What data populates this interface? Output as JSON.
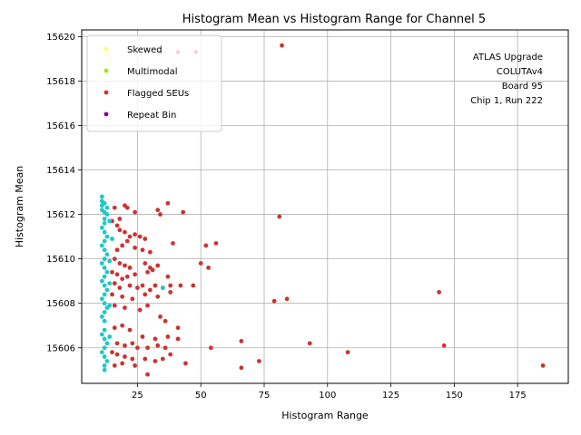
{
  "chart_data": {
    "type": "scatter",
    "title": "Histogram Mean vs Histogram Range for Channel 5",
    "xlabel": "Histogram Range",
    "ylabel": "Histogram Mean",
    "xlim": [
      3,
      195
    ],
    "ylim": [
      15604.4,
      15620.3
    ],
    "xticks": [
      25,
      50,
      75,
      100,
      125,
      150,
      175
    ],
    "yticks": [
      15606,
      15608,
      15610,
      15612,
      15614,
      15616,
      15618,
      15620
    ],
    "xtick_labels": [
      "25",
      "50",
      "75",
      "100",
      "125",
      "150",
      "175"
    ],
    "ytick_labels": [
      "15606",
      "15608",
      "15610",
      "15612",
      "15614",
      "15616",
      "15618",
      "15620"
    ],
    "grid": true,
    "legend_position": "top-left",
    "annotation_lines": [
      "ATLAS Upgrade",
      "COLUTAv4",
      "Board 95",
      "Chip 1, Run 222"
    ],
    "series": [
      {
        "name": "Skewed",
        "color": "#ffff66",
        "points": [
          [
            13,
            15619.2
          ],
          [
            14,
            15619.1
          ]
        ]
      },
      {
        "name": "Multimodal",
        "color": "#99ee00",
        "points": []
      },
      {
        "name": "Flagged SEUs",
        "color": "#cc3333",
        "points": [
          [
            82,
            15619.6
          ],
          [
            34,
            15619.3
          ],
          [
            41,
            15619.3
          ],
          [
            48,
            15619.3
          ],
          [
            37,
            15612.5
          ],
          [
            20,
            15612.4
          ],
          [
            21,
            15612.3
          ],
          [
            33,
            15612.2
          ],
          [
            34,
            15612.0
          ],
          [
            43,
            15612.1
          ],
          [
            81,
            15611.9
          ],
          [
            16,
            15612.3
          ],
          [
            18,
            15611.8
          ],
          [
            24,
            15612.1
          ],
          [
            15,
            15611.7
          ],
          [
            17,
            15611.5
          ],
          [
            18,
            15611.3
          ],
          [
            20,
            15611.2
          ],
          [
            22,
            15611.0
          ],
          [
            24,
            15611.1
          ],
          [
            26,
            15611.0
          ],
          [
            28,
            15610.9
          ],
          [
            21,
            15610.8
          ],
          [
            19,
            15610.6
          ],
          [
            17,
            15610.4
          ],
          [
            24,
            15610.5
          ],
          [
            27,
            15610.4
          ],
          [
            30,
            15610.3
          ],
          [
            39,
            15610.7
          ],
          [
            52,
            15610.6
          ],
          [
            56,
            15610.7
          ],
          [
            16,
            15610.0
          ],
          [
            18,
            15609.8
          ],
          [
            20,
            15609.7
          ],
          [
            22,
            15609.6
          ],
          [
            28,
            15609.8
          ],
          [
            30,
            15609.6
          ],
          [
            33,
            15609.7
          ],
          [
            50,
            15609.8
          ],
          [
            53,
            15609.6
          ],
          [
            15,
            15609.4
          ],
          [
            17,
            15609.3
          ],
          [
            19,
            15609.1
          ],
          [
            21,
            15609.2
          ],
          [
            24,
            15609.3
          ],
          [
            29,
            15609.4
          ],
          [
            31,
            15609.5
          ],
          [
            37,
            15609.2
          ],
          [
            16,
            15608.9
          ],
          [
            18,
            15608.7
          ],
          [
            22,
            15608.8
          ],
          [
            25,
            15608.7
          ],
          [
            27,
            15608.8
          ],
          [
            30,
            15608.6
          ],
          [
            32,
            15608.8
          ],
          [
            35,
            15608.7
          ],
          [
            38,
            15608.8
          ],
          [
            42,
            15608.8
          ],
          [
            47,
            15608.8
          ],
          [
            15,
            15608.4
          ],
          [
            19,
            15608.3
          ],
          [
            23,
            15608.2
          ],
          [
            28,
            15608.4
          ],
          [
            33,
            15608.3
          ],
          [
            38,
            15608.5
          ],
          [
            79,
            15608.1
          ],
          [
            84,
            15608.2
          ],
          [
            144,
            15608.5
          ],
          [
            16,
            15607.9
          ],
          [
            20,
            15607.8
          ],
          [
            26,
            15607.7
          ],
          [
            29,
            15607.9
          ],
          [
            34,
            15607.4
          ],
          [
            36,
            15607.2
          ],
          [
            16,
            15606.9
          ],
          [
            19,
            15607.0
          ],
          [
            22,
            15606.8
          ],
          [
            27,
            15606.5
          ],
          [
            32,
            15606.4
          ],
          [
            37,
            15606.5
          ],
          [
            41,
            15606.9
          ],
          [
            41,
            15606.4
          ],
          [
            66,
            15606.3
          ],
          [
            17,
            15606.2
          ],
          [
            20,
            15606.1
          ],
          [
            23,
            15606.2
          ],
          [
            25,
            15606.0
          ],
          [
            29,
            15606.0
          ],
          [
            33,
            15606.1
          ],
          [
            36,
            15606.0
          ],
          [
            54,
            15606.0
          ],
          [
            93,
            15606.2
          ],
          [
            108,
            15605.8
          ],
          [
            146,
            15606.1
          ],
          [
            15,
            15605.8
          ],
          [
            17,
            15605.7
          ],
          [
            20,
            15605.6
          ],
          [
            23,
            15605.5
          ],
          [
            28,
            15605.5
          ],
          [
            32,
            15605.4
          ],
          [
            35,
            15605.5
          ],
          [
            38,
            15605.7
          ],
          [
            44,
            15605.3
          ],
          [
            73,
            15605.4
          ],
          [
            66,
            15605.1
          ],
          [
            185,
            15605.2
          ],
          [
            16,
            15605.2
          ],
          [
            19,
            15605.3
          ],
          [
            24,
            15605.2
          ],
          [
            29,
            15604.8
          ]
        ]
      },
      {
        "name": "Repeat Bin",
        "color": "#880088",
        "points": []
      },
      {
        "name": "",
        "color": "#1ec8c8",
        "points": [
          [
            11,
            15612.8
          ],
          [
            11,
            15612.6
          ],
          [
            11,
            15612.4
          ],
          [
            11,
            15612.2
          ],
          [
            12,
            15612.5
          ],
          [
            12,
            15612.1
          ],
          [
            13,
            15612.3
          ],
          [
            13,
            15612.0
          ],
          [
            12,
            15611.8
          ],
          [
            12,
            15611.6
          ],
          [
            11,
            15611.4
          ],
          [
            12,
            15611.2
          ],
          [
            13,
            15611.0
          ],
          [
            12,
            15610.8
          ],
          [
            11,
            15610.6
          ],
          [
            12,
            15610.4
          ],
          [
            13,
            15610.2
          ],
          [
            12,
            15610.0
          ],
          [
            11,
            15609.8
          ],
          [
            12,
            15609.6
          ],
          [
            13,
            15609.4
          ],
          [
            12,
            15609.2
          ],
          [
            11,
            15609.0
          ],
          [
            12,
            15608.8
          ],
          [
            13,
            15608.6
          ],
          [
            12,
            15608.4
          ],
          [
            11,
            15608.2
          ],
          [
            12,
            15608.0
          ],
          [
            13,
            15607.8
          ],
          [
            12,
            15607.6
          ],
          [
            11,
            15607.4
          ],
          [
            12,
            15607.2
          ],
          [
            12,
            15606.8
          ],
          [
            11,
            15606.6
          ],
          [
            12,
            15606.4
          ],
          [
            13,
            15606.2
          ],
          [
            12,
            15606.0
          ],
          [
            11,
            15605.8
          ],
          [
            12,
            15605.6
          ],
          [
            13,
            15605.4
          ],
          [
            12,
            15605.2
          ],
          [
            12,
            15605.0
          ],
          [
            14,
            15609.9
          ],
          [
            14,
            15608.9
          ],
          [
            14,
            15607.9
          ],
          [
            14,
            15606.5
          ],
          [
            15,
            15610.9
          ],
          [
            14,
            15611.7
          ],
          [
            35,
            15608.7
          ]
        ]
      }
    ]
  }
}
